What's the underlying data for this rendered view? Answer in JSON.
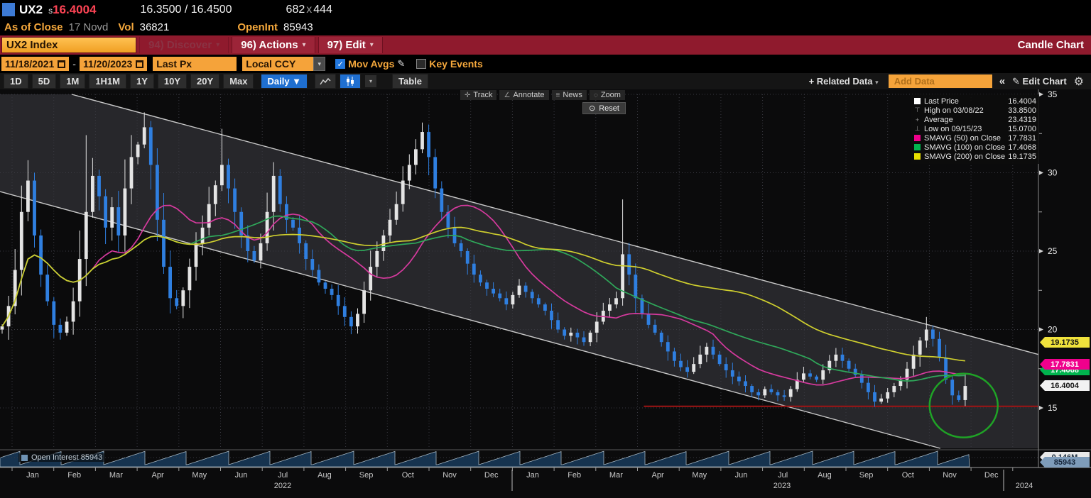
{
  "window": {
    "ticker": "UX2",
    "s_prefix": "s",
    "last": "16.4004",
    "bid_ask": "16.3500 / 16.4500",
    "bid_size": "682",
    "size_sep": "x",
    "ask_size": "444"
  },
  "subheader": {
    "as_of_label": "As of Close",
    "as_of_date": "17 Novd",
    "vol_label": "Vol",
    "vol_value": "36821",
    "oi_label": "OpenInt",
    "oi_value": "85943"
  },
  "menubar": {
    "ticker_box": "UX2 Index",
    "discover": "94) Discover",
    "actions": "96) Actions",
    "edit": "97) Edit",
    "caret": "▾",
    "right_label": "Candle Chart"
  },
  "controls": {
    "date_from": "11/18/2021",
    "date_sep": "-",
    "date_to": "11/20/2023",
    "px_field": "Last Px",
    "currency": "Local CCY",
    "dd_arrow": "▾",
    "check_glyph": "✓",
    "mov_avgs": "Mov Avgs",
    "pencil": "✎",
    "key_events": "Key Events"
  },
  "toolbar": {
    "periods": [
      "1D",
      "5D",
      "1M",
      "1H1M",
      "1Y",
      "10Y",
      "20Y",
      "Max"
    ],
    "frequency": "Daily ▼",
    "table": "Table",
    "related_data": "+ Related Data",
    "related_caret": "▾",
    "add_data_placeholder": "Add Data",
    "collapse": "«",
    "edit_chart": "✎ Edit Chart",
    "gear": "⚙"
  },
  "chart_tools": {
    "track": "Track",
    "annotate": "Annotate",
    "news": "News",
    "zoom": "Zoom",
    "reset": "Reset",
    "track_icon": "✛",
    "annotate_icon": "∠",
    "news_icon": "≡",
    "zoom_icon": "◌",
    "reset_icon": "⊙"
  },
  "legend": {
    "rows": [
      {
        "type": "swatch",
        "color": "#ffffff",
        "label": "Last Price",
        "value": "16.4004"
      },
      {
        "type": "marker",
        "glyph": "⊤",
        "label": "High on 03/08/22",
        "value": "33.8500"
      },
      {
        "type": "marker",
        "glyph": "+",
        "label": "Average",
        "value": "23.4319"
      },
      {
        "type": "marker",
        "glyph": "⊥",
        "label": "Low on 09/15/23",
        "value": "15.0700"
      },
      {
        "type": "swatch",
        "color": "#f0008c",
        "label": "SMAVG (50)  on Close",
        "value": "17.7831"
      },
      {
        "type": "swatch",
        "color": "#00b44e",
        "label": "SMAVG (100)  on Close",
        "value": "17.4068"
      },
      {
        "type": "swatch",
        "color": "#e8e000",
        "label": "SMAVG (200)  on Close",
        "value": "19.1735"
      }
    ]
  },
  "axis": {
    "price_ticks": [
      35,
      30,
      25,
      20,
      15
    ],
    "minor_ticks": [
      32.5,
      27.5,
      22.5,
      17.5
    ],
    "badges": [
      {
        "text": "19.1735",
        "bg": "#f0e23c",
        "fg": "#141414",
        "top": 349
      },
      {
        "text": "17.4068",
        "bg": "#00b44e",
        "fg": "#ffffff",
        "top": 388
      },
      {
        "text": "17.7831",
        "bg": "#f0008c",
        "fg": "#ffffff",
        "top": 380
      },
      {
        "text": "16.4004",
        "bg": "#f2f2f2",
        "fg": "#141414",
        "top": 410
      },
      {
        "text": "0.146M",
        "bg": "#e8e8e8",
        "fg": "#223344",
        "top": 511
      },
      {
        "text": "85943",
        "bg": "#7e9cba",
        "fg": "#15253a",
        "top": 518
      }
    ],
    "months_2022": [
      "Jan",
      "Feb",
      "Mar",
      "Apr",
      "May",
      "Jun",
      "Jul",
      "Aug",
      "Sep",
      "Oct",
      "Nov",
      "Dec"
    ],
    "months_2023": [
      "Jan",
      "Feb",
      "Mar",
      "Apr",
      "May",
      "Jun",
      "Jul",
      "Aug",
      "Sep",
      "Oct",
      "Nov",
      "Dec"
    ],
    "years": [
      "2022",
      "2023",
      "2024"
    ]
  },
  "oi_panel": {
    "label": "Open Interest 85943"
  },
  "chart_data": {
    "type": "candlestick",
    "title": "UX2 Index Candle Chart, 11/18/2021 - 11/20/2023, Daily",
    "ylim": [
      12.4,
      35.3
    ],
    "price_gridlines": [
      15,
      20,
      25,
      30,
      35
    ],
    "x_span": {
      "start": "11/18/2021",
      "end": "11/20/2023",
      "axis_end": "Jan 2024"
    },
    "first_open": 20.0,
    "closes": [
      20.2,
      21.5,
      23.8,
      27.5,
      29.5,
      26.0,
      23.5,
      21.8,
      20.3,
      19.8,
      20.5,
      21.8,
      24.5,
      27.5,
      29.8,
      28.5,
      26.5,
      27.8,
      26.0,
      29.0,
      31.0,
      31.8,
      32.9,
      30.5,
      27.0,
      24.0,
      22.0,
      21.5,
      22.5,
      24.0,
      25.5,
      26.5,
      28.0,
      29.2,
      30.5,
      29.0,
      27.5,
      26.0,
      25.0,
      24.4,
      25.5,
      27.5,
      29.8,
      28.0,
      27.0,
      26.5,
      25.5,
      24.5,
      23.8,
      23.0,
      22.6,
      22.2,
      21.5,
      20.8,
      20.2,
      21.0,
      22.5,
      24.0,
      25.0,
      26.0,
      27.0,
      28.0,
      29.5,
      30.5,
      31.5,
      32.6,
      31.0,
      29.0,
      27.5,
      26.5,
      25.5,
      25.0,
      24.2,
      23.5,
      23.0,
      22.6,
      22.3,
      22.0,
      21.6,
      22.2,
      22.8,
      22.4,
      22.0,
      21.6,
      21.2,
      20.6,
      20.0,
      19.6,
      19.8,
      19.5,
      19.2,
      19.8,
      20.5,
      21.2,
      21.6,
      22.0,
      24.8,
      23.5,
      22.0,
      21.0,
      20.3,
      19.8,
      19.2,
      18.6,
      18.0,
      17.6,
      17.3,
      17.8,
      18.4,
      18.9,
      18.4,
      17.8,
      17.4,
      17.0,
      16.7,
      16.4,
      16.0,
      15.8,
      16.2,
      16.0,
      15.8,
      15.7,
      16.2,
      16.8,
      17.2,
      17.0,
      16.8,
      17.4,
      18.0,
      18.4,
      18.0,
      17.5,
      17.1,
      16.6,
      16.0,
      15.4,
      15.6,
      16.0,
      16.4,
      16.8,
      17.5,
      18.4,
      19.3,
      20.0,
      19.4,
      18.2,
      16.8,
      15.8,
      15.5,
      16.4
    ],
    "wick_overrides": {
      "4": {
        "high": 30.8
      },
      "13": {
        "high": 32.4
      },
      "22": {
        "high": 33.85
      },
      "34": {
        "high": 32.8
      },
      "54": {
        "low": 19.7
      },
      "65": {
        "high": 33.2
      },
      "96": {
        "high": 28.3
      },
      "135": {
        "low": 15.07
      },
      "143": {
        "high": 20.8
      },
      "147": {
        "low": 15.2
      }
    },
    "high_point": {
      "date": "03/08/22",
      "value": 33.85
    },
    "low_point": {
      "date": "09/15/23",
      "value": 15.07
    },
    "average": 23.4319,
    "last_price": 16.4004,
    "colors": {
      "up": "#e4e4e4",
      "down": "#2f7fe0",
      "grid": "#3a3a42",
      "channel": "#c9c9c9",
      "band_fill": "#27272b",
      "support": "#a01414",
      "circle": "#1fa326",
      "oi_fill": "#16334f",
      "oi_line": "#a7b8c4"
    },
    "smavg": [
      {
        "period": 50,
        "window": 15,
        "color": "#d63a9e",
        "last": 17.7831
      },
      {
        "period": 100,
        "window": 30,
        "color": "#2fa85a",
        "last": 17.4068
      },
      {
        "period": 200,
        "window": 59,
        "color": "#cfc center"
      }
    ],
    "smavg_colors": [
      "#d63a9e",
      "#2fa85a",
      "#cfcf2e"
    ],
    "channel": {
      "lower_price_at_x0": 28.8,
      "lower_price_at_right": 10.71,
      "width_price": 7.7
    },
    "support_line": {
      "price": 15.1,
      "start_frac": 0.62
    },
    "annotation_circle": {
      "x_frac": 0.928,
      "price": 15.15,
      "rx": 48,
      "ry": 45
    },
    "open_interest": {
      "current": 85943,
      "pattern": "monthly sawtooth",
      "teeth": 25
    }
  }
}
